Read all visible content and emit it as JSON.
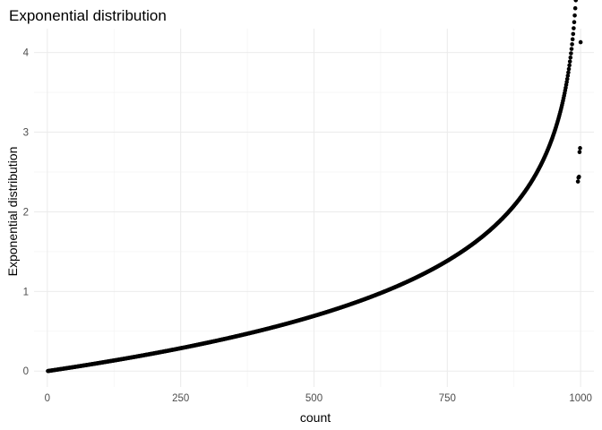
{
  "chart_data": {
    "type": "scatter",
    "title": "Exponential distribution",
    "xlabel": "count",
    "ylabel": "Exponential distribution",
    "x_ticks": [
      0,
      250,
      500,
      750,
      1000
    ],
    "y_ticks": [
      0,
      1,
      2,
      3,
      4
    ],
    "xlim": [
      -25,
      1025
    ],
    "ylim": [
      -0.2,
      4.3
    ],
    "grid": true,
    "legend": "none",
    "point_color": "#000000",
    "distribution": "exponential",
    "rate": 1,
    "n_points": 1000,
    "outliers": [
      {
        "x": 995,
        "y": 2.38
      },
      {
        "x": 996,
        "y": 2.43
      },
      {
        "x": 997,
        "y": 2.44
      },
      {
        "x": 998,
        "y": 2.75
      },
      {
        "x": 999,
        "y": 2.8
      },
      {
        "x": 1000,
        "y": 4.13
      }
    ]
  }
}
